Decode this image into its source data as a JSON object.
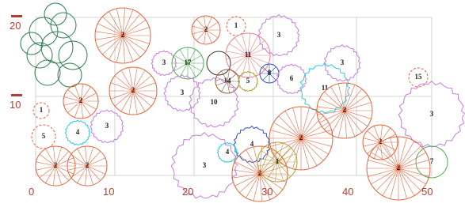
{
  "axes": {
    "x_labels": [
      "0",
      "10",
      "20",
      "30",
      "40",
      "50"
    ],
    "y_labels": [
      "20",
      "10"
    ]
  },
  "plants": [
    {
      "label": "2"
    },
    {
      "label": "2"
    },
    {
      "label": "1"
    },
    {
      "label": "11"
    },
    {
      "label": "3"
    },
    {
      "label": "3"
    },
    {
      "label": "17"
    },
    {
      "label": "14"
    },
    {
      "label": "5"
    },
    {
      "label": "8"
    },
    {
      "label": "6"
    },
    {
      "label": "11"
    },
    {
      "label": "3"
    },
    {
      "label": "15"
    },
    {
      "label": "3"
    },
    {
      "label": "2"
    },
    {
      "label": "2"
    },
    {
      "label": "1"
    },
    {
      "label": "5"
    },
    {
      "label": "4"
    },
    {
      "label": "3"
    },
    {
      "label": "3"
    },
    {
      "label": "10"
    },
    {
      "label": "2"
    },
    {
      "label": "2"
    },
    {
      "label": "4"
    },
    {
      "label": "2"
    },
    {
      "label": "7"
    },
    {
      "label": "2"
    },
    {
      "label": "3"
    },
    {
      "label": "4"
    },
    {
      "label": "2"
    },
    {
      "label": "1"
    },
    {
      "label": "2"
    },
    {
      "label": "2"
    }
  ]
}
